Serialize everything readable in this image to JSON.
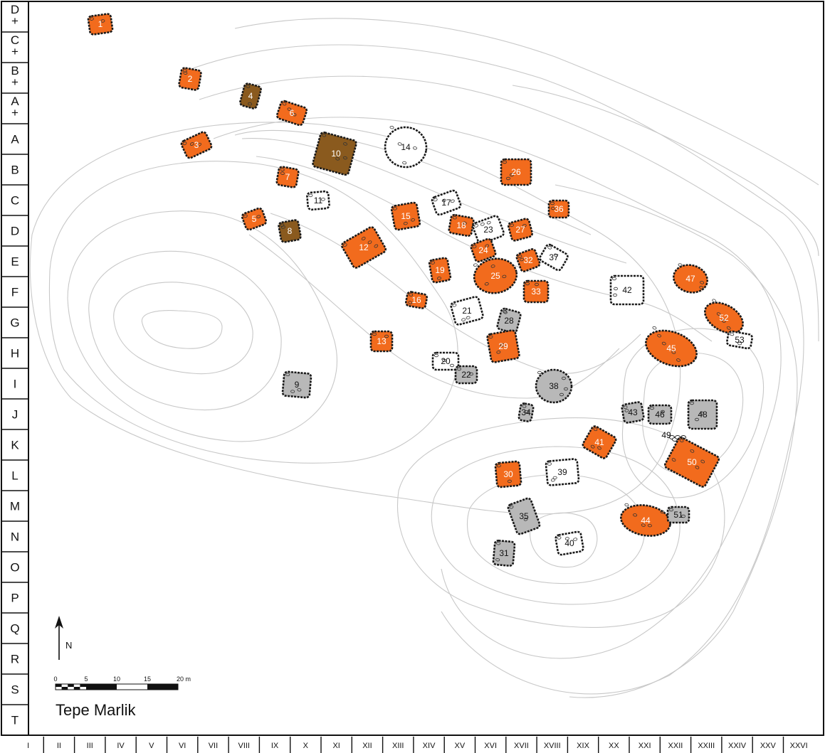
{
  "title": "Tepe Marlik",
  "north_label": "N",
  "scale": {
    "ticks": [
      "0",
      "5",
      "10",
      "15",
      "20 m"
    ]
  },
  "row_labels": [
    "D\n+",
    "C\n+",
    "B\n+",
    "A\n+",
    "A",
    "B",
    "C",
    "D",
    "E",
    "F",
    "G",
    "H",
    "I",
    "J",
    "K",
    "L",
    "M",
    "N",
    "O",
    "P",
    "Q",
    "R",
    "S",
    "T"
  ],
  "column_labels": [
    "I",
    "II",
    "III",
    "IV",
    "V",
    "VI",
    "VII",
    "VIII",
    "IX",
    "X",
    "XI",
    "XII",
    "XIII",
    "XIV",
    "XV",
    "XVI",
    "XVII",
    "XVIII",
    "XIX",
    "XX",
    "XXI",
    "XXII",
    "XXIII",
    "XXIV",
    "XXV",
    "XXVI"
  ],
  "colors": {
    "orange": "#f26b1d",
    "brown": "#8a5a1e",
    "gray": "#b8b8b8",
    "white": "#ffffff",
    "contour": "#c8c8c8"
  },
  "tombs": [
    {
      "label": "1",
      "type": "orange"
    },
    {
      "label": "2",
      "type": "orange"
    },
    {
      "label": "3",
      "type": "orange"
    },
    {
      "label": "4",
      "type": "brown"
    },
    {
      "label": "5",
      "type": "orange"
    },
    {
      "label": "6",
      "type": "orange"
    },
    {
      "label": "7",
      "type": "orange"
    },
    {
      "label": "8",
      "type": "brown"
    },
    {
      "label": "9",
      "type": "gray"
    },
    {
      "label": "10",
      "type": "brown"
    },
    {
      "label": "11",
      "type": "white"
    },
    {
      "label": "12",
      "type": "orange"
    },
    {
      "label": "13",
      "type": "orange"
    },
    {
      "label": "14",
      "type": "white"
    },
    {
      "label": "15",
      "type": "orange"
    },
    {
      "label": "16",
      "type": "orange"
    },
    {
      "label": "17",
      "type": "white"
    },
    {
      "label": "18",
      "type": "orange"
    },
    {
      "label": "19",
      "type": "orange"
    },
    {
      "label": "20",
      "type": "white"
    },
    {
      "label": "21",
      "type": "white"
    },
    {
      "label": "22",
      "type": "gray"
    },
    {
      "label": "23",
      "type": "white"
    },
    {
      "label": "24",
      "type": "orange"
    },
    {
      "label": "25",
      "type": "orange"
    },
    {
      "label": "26",
      "type": "orange"
    },
    {
      "label": "27",
      "type": "orange"
    },
    {
      "label": "28",
      "type": "gray"
    },
    {
      "label": "29",
      "type": "orange"
    },
    {
      "label": "30",
      "type": "orange"
    },
    {
      "label": "31",
      "type": "gray"
    },
    {
      "label": "32",
      "type": "orange"
    },
    {
      "label": "33",
      "type": "orange"
    },
    {
      "label": "34",
      "type": "gray"
    },
    {
      "label": "35",
      "type": "gray"
    },
    {
      "label": "36",
      "type": "orange"
    },
    {
      "label": "37",
      "type": "white"
    },
    {
      "label": "38",
      "type": "gray"
    },
    {
      "label": "39",
      "type": "white"
    },
    {
      "label": "40",
      "type": "white"
    },
    {
      "label": "41",
      "type": "orange"
    },
    {
      "label": "42",
      "type": "white"
    },
    {
      "label": "43",
      "type": "gray"
    },
    {
      "label": "44",
      "type": "orange"
    },
    {
      "label": "45",
      "type": "orange"
    },
    {
      "label": "46",
      "type": "gray"
    },
    {
      "label": "47",
      "type": "orange"
    },
    {
      "label": "48",
      "type": "gray"
    },
    {
      "label": "49",
      "type": "white"
    },
    {
      "label": "50",
      "type": "orange"
    },
    {
      "label": "51",
      "type": "gray"
    },
    {
      "label": "52",
      "type": "orange"
    },
    {
      "label": "53",
      "type": "white"
    }
  ]
}
